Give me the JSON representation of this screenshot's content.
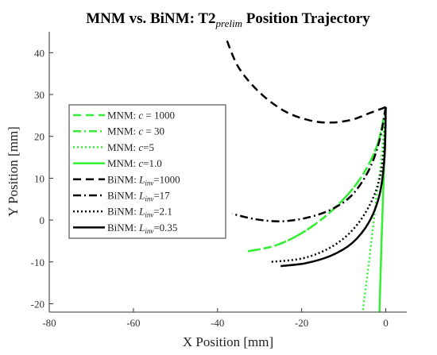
{
  "chart_data": {
    "type": "line",
    "title": {
      "main": "MNM vs. BiNM: T2",
      "sub": "prelim",
      "rest": " Position Trajectory"
    },
    "xlabel": "X Position [mm]",
    "ylabel": "Y Position [mm]",
    "xlim": [
      -80,
      5
    ],
    "ylim": [
      -22,
      45
    ],
    "xticks": [
      -80,
      -60,
      -40,
      -20,
      0
    ],
    "yticks": [
      -20,
      -10,
      0,
      10,
      20,
      30,
      40
    ],
    "legend_position": "left",
    "series": [
      {
        "name_prefix": "MNM: ",
        "name_var": "c",
        "name_sub": "",
        "name_suffix": " = 1000",
        "color": "#33ee33",
        "dash": "10,6",
        "width": 2.5,
        "points": [
          [
            0,
            27
          ],
          [
            -2,
            18
          ],
          [
            -6,
            10
          ],
          [
            -12,
            3
          ],
          [
            -19,
            -2.5
          ],
          [
            -26,
            -6
          ],
          [
            -33,
            -7.5
          ]
        ]
      },
      {
        "name_prefix": "MNM: ",
        "name_var": "c",
        "name_sub": "",
        "name_suffix": " = 30",
        "color": "#33ee33",
        "dash": "10,4,2,4",
        "width": 2.5,
        "points": [
          [
            0,
            27
          ],
          [
            -2,
            18
          ],
          [
            -6,
            10
          ],
          [
            -12,
            3
          ],
          [
            -19,
            -2.5
          ],
          [
            -26,
            -6
          ],
          [
            -33,
            -7.5
          ]
        ]
      },
      {
        "name_prefix": "MNM: ",
        "name_var": "c",
        "name_sub": "",
        "name_suffix": "=5",
        "color": "#33ee33",
        "dash": "2,3",
        "width": 2.5,
        "points": [
          [
            0,
            27
          ],
          [
            -1,
            15
          ],
          [
            -2.5,
            3
          ],
          [
            -4,
            -10
          ],
          [
            -5.5,
            -22
          ]
        ]
      },
      {
        "name_prefix": "MNM: ",
        "name_var": "c",
        "name_sub": "",
        "name_suffix": "=1.0",
        "color": "#33ee33",
        "dash": "",
        "width": 2.5,
        "points": [
          [
            0,
            27
          ],
          [
            -0.5,
            10
          ],
          [
            -1,
            -5
          ],
          [
            -1.5,
            -22
          ]
        ]
      },
      {
        "name_prefix": "BiNM: ",
        "name_var": "L",
        "name_sub": "inv",
        "name_suffix": "=1000",
        "color": "#000000",
        "dash": "10,6",
        "width": 2.5,
        "points": [
          [
            0,
            27
          ],
          [
            -4,
            25.5
          ],
          [
            -8,
            24
          ],
          [
            -13,
            23.3
          ],
          [
            -18,
            23.8
          ],
          [
            -24,
            26
          ],
          [
            -30,
            30.5
          ],
          [
            -35,
            36.5
          ],
          [
            -38,
            43.5
          ]
        ]
      },
      {
        "name_prefix": "BiNM: ",
        "name_var": "L",
        "name_sub": "inv",
        "name_suffix": "=17",
        "color": "#000000",
        "dash": "10,4,2,4",
        "width": 2.5,
        "points": [
          [
            0,
            27
          ],
          [
            -1.5,
            19
          ],
          [
            -4,
            12
          ],
          [
            -8,
            6
          ],
          [
            -13,
            2.5
          ],
          [
            -19,
            0.5
          ],
          [
            -25,
            -0.3
          ],
          [
            -31,
            0.2
          ],
          [
            -36.5,
            1.5
          ]
        ]
      },
      {
        "name_prefix": "BiNM: ",
        "name_var": "L",
        "name_sub": "inv",
        "name_suffix": "=2.1",
        "color": "#000000",
        "dash": "2,3",
        "width": 2.5,
        "points": [
          [
            0,
            27
          ],
          [
            -0.5,
            16
          ],
          [
            -2,
            8
          ],
          [
            -5,
            1.5
          ],
          [
            -9,
            -3.5
          ],
          [
            -14,
            -7
          ],
          [
            -20,
            -9.2
          ],
          [
            -27.5,
            -10
          ]
        ]
      },
      {
        "name_prefix": "BiNM: ",
        "name_var": "L",
        "name_sub": "inv",
        "name_suffix": "=0.35",
        "color": "#000000",
        "dash": "",
        "width": 2.5,
        "points": [
          [
            0,
            27
          ],
          [
            -0.3,
            15
          ],
          [
            -1.5,
            6
          ],
          [
            -4,
            -0.5
          ],
          [
            -8,
            -5.5
          ],
          [
            -13,
            -8.5
          ],
          [
            -19,
            -10.3
          ],
          [
            -25,
            -11
          ]
        ]
      }
    ]
  }
}
